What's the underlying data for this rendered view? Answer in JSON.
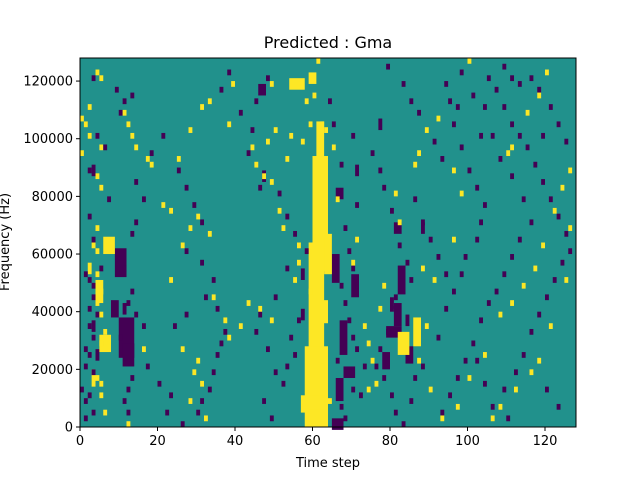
{
  "chart_data": {
    "type": "heatmap",
    "title": "Predicted : Gma",
    "xlabel": "Time step",
    "ylabel": "Frequency (Hz)",
    "xlim": [
      0,
      128
    ],
    "ylim": [
      0,
      128000
    ],
    "cell_height_hz": 2000,
    "xticks": [
      0,
      20,
      40,
      60,
      80,
      100,
      120
    ],
    "yticks": [
      0,
      20000,
      40000,
      60000,
      80000,
      100000,
      120000
    ],
    "grid": false,
    "colors": {
      "background_value": "#21918c",
      "high_value": "#fde725",
      "low_value": "#440154"
    },
    "high_cells": [
      [
        4,
        123000
      ],
      [
        2,
        111000
      ],
      [
        0,
        107000
      ],
      [
        1,
        105000
      ],
      [
        2,
        101000
      ],
      [
        0,
        95000
      ],
      [
        4,
        87000
      ],
      [
        5,
        83000
      ],
      [
        4,
        69000
      ],
      [
        3,
        63000
      ],
      [
        4,
        61000
      ],
      [
        4,
        53000
      ],
      [
        5,
        47000
      ],
      [
        4,
        43000
      ],
      [
        5,
        39000
      ],
      [
        6,
        33000
      ],
      [
        5,
        29000
      ],
      [
        4,
        17000
      ],
      [
        5,
        11000
      ],
      [
        6,
        5000
      ],
      [
        5,
        15000
      ],
      [
        5,
        121000
      ],
      [
        11,
        109000
      ],
      [
        12,
        105000
      ],
      [
        13,
        101000
      ],
      [
        17,
        93000
      ],
      [
        14,
        97000
      ],
      [
        18,
        91000
      ],
      [
        23,
        51000
      ],
      [
        26,
        63000
      ],
      [
        23,
        75000
      ],
      [
        21,
        77000
      ],
      [
        30,
        73000
      ],
      [
        33,
        67000
      ],
      [
        28,
        69000
      ],
      [
        26,
        27000
      ],
      [
        30,
        23000
      ],
      [
        29,
        19000
      ],
      [
        31,
        15000
      ],
      [
        28,
        9000
      ],
      [
        32,
        3000
      ],
      [
        34,
        45000
      ],
      [
        37,
        37000
      ],
      [
        38,
        31000
      ],
      [
        41,
        35000
      ],
      [
        46,
        41000
      ],
      [
        49,
        37000
      ],
      [
        43,
        43000
      ],
      [
        45,
        91000
      ],
      [
        47,
        87000
      ],
      [
        49,
        85000
      ],
      [
        51,
        75000
      ],
      [
        56,
        63000
      ],
      [
        56,
        57000
      ],
      [
        55,
        51000
      ],
      [
        59,
        47000
      ],
      [
        62,
        21000
      ],
      [
        63,
        17000
      ],
      [
        64,
        9000
      ],
      [
        16,
        27000
      ],
      [
        12,
        1000
      ],
      [
        25,
        93000
      ],
      [
        28,
        103000
      ],
      [
        31,
        111000
      ],
      [
        33,
        113000
      ],
      [
        38,
        105000
      ],
      [
        39,
        119000
      ],
      [
        49,
        119000
      ],
      [
        50,
        103000
      ],
      [
        48,
        99000
      ],
      [
        53,
        93000
      ],
      [
        57,
        99000
      ],
      [
        59,
        105000
      ],
      [
        60,
        115000
      ],
      [
        61,
        127000
      ],
      [
        62,
        105000
      ],
      [
        63,
        103000
      ],
      [
        65,
        97000
      ],
      [
        62,
        87000
      ],
      [
        66,
        79000
      ],
      [
        70,
        57000
      ],
      [
        73,
        35000
      ],
      [
        74,
        29000
      ],
      [
        75,
        23000
      ],
      [
        76,
        15000
      ],
      [
        74,
        13000
      ],
      [
        77,
        41000
      ],
      [
        78,
        49000
      ],
      [
        81,
        81000
      ],
      [
        86,
        91000
      ],
      [
        87,
        95000
      ],
      [
        89,
        103000
      ],
      [
        92,
        107000
      ],
      [
        96,
        89000
      ],
      [
        98,
        81000
      ],
      [
        96,
        65000
      ],
      [
        91,
        51000
      ],
      [
        89,
        35000
      ],
      [
        87,
        23000
      ],
      [
        90,
        13000
      ],
      [
        93,
        3000
      ],
      [
        97,
        7000
      ],
      [
        100,
        17000
      ],
      [
        104,
        25000
      ],
      [
        108,
        39000
      ],
      [
        111,
        43000
      ],
      [
        114,
        49000
      ],
      [
        117,
        55000
      ],
      [
        119,
        63000
      ],
      [
        122,
        75000
      ],
      [
        124,
        83000
      ],
      [
        126,
        89000
      ],
      [
        126,
        69000
      ],
      [
        125,
        51000
      ],
      [
        121,
        35000
      ],
      [
        118,
        23000
      ],
      [
        116,
        19000
      ],
      [
        112,
        13000
      ],
      [
        108,
        7000
      ],
      [
        106,
        3000
      ],
      [
        110,
        95000
      ],
      [
        111,
        97000
      ],
      [
        115,
        109000
      ],
      [
        118,
        115000
      ],
      [
        120,
        123000
      ],
      [
        100,
        127000
      ],
      [
        44,
        97000
      ],
      [
        52,
        69000
      ],
      [
        58,
        113000
      ],
      [
        54,
        101000
      ],
      [
        71,
        65000
      ],
      [
        82,
        71000
      ],
      [
        88,
        55000
      ]
    ],
    "high_blocks": [
      [
        59,
        121000,
        2,
        4000
      ],
      [
        61,
        86000,
        2,
        40000
      ],
      [
        60,
        74000,
        4,
        40000
      ],
      [
        59,
        42000,
        4,
        44000
      ],
      [
        58,
        14000,
        6,
        28000
      ],
      [
        57,
        8000,
        6,
        6000
      ],
      [
        59,
        4000,
        5,
        4000
      ],
      [
        62,
        40000,
        2,
        8000
      ],
      [
        63,
        60000,
        2,
        14000
      ],
      [
        54,
        119000,
        4,
        4000
      ],
      [
        2,
        55000,
        1,
        4000
      ],
      [
        4,
        47000,
        2,
        8000
      ],
      [
        5,
        29000,
        3,
        6000
      ],
      [
        3,
        17000,
        1,
        6000
      ],
      [
        5,
        97000,
        1,
        2000
      ],
      [
        6,
        63000,
        3,
        6000
      ],
      [
        82,
        29000,
        3,
        8000
      ],
      [
        86,
        33000,
        2,
        10000
      ]
    ],
    "low_cells": [
      [
        3,
        121000
      ],
      [
        9,
        117000
      ],
      [
        13,
        115000
      ],
      [
        11,
        113000
      ],
      [
        10,
        109000
      ],
      [
        4,
        101000
      ],
      [
        6,
        97000
      ],
      [
        2,
        89000
      ],
      [
        7,
        79000
      ],
      [
        2,
        73000
      ],
      [
        3,
        65000
      ],
      [
        5,
        55000
      ],
      [
        1,
        53000
      ],
      [
        2,
        51000
      ],
      [
        3,
        49000
      ],
      [
        3,
        45000
      ],
      [
        2,
        41000
      ],
      [
        4,
        39000
      ],
      [
        2,
        35000
      ],
      [
        3,
        31000
      ],
      [
        1,
        27000
      ],
      [
        2,
        25000
      ],
      [
        1,
        21000
      ],
      [
        3,
        19000
      ],
      [
        0,
        13000
      ],
      [
        2,
        11000
      ],
      [
        1,
        9000
      ],
      [
        3,
        5000
      ],
      [
        1,
        3000
      ],
      [
        12,
        43000
      ],
      [
        13,
        47000
      ],
      [
        14,
        39000
      ],
      [
        11,
        55000
      ],
      [
        13,
        67000
      ],
      [
        14,
        71000
      ],
      [
        16,
        79000
      ],
      [
        14,
        85000
      ],
      [
        18,
        95000
      ],
      [
        21,
        101000
      ],
      [
        25,
        89000
      ],
      [
        27,
        83000
      ],
      [
        29,
        77000
      ],
      [
        31,
        71000
      ],
      [
        27,
        61000
      ],
      [
        31,
        57000
      ],
      [
        34,
        51000
      ],
      [
        32,
        45000
      ],
      [
        35,
        41000
      ],
      [
        37,
        33000
      ],
      [
        36,
        29000
      ],
      [
        35,
        25000
      ],
      [
        34,
        19000
      ],
      [
        33,
        13000
      ],
      [
        31,
        9000
      ],
      [
        30,
        5000
      ],
      [
        13,
        17000
      ],
      [
        12,
        13000
      ],
      [
        11,
        9000
      ],
      [
        12,
        5000
      ],
      [
        10,
        31000
      ],
      [
        24,
        35000
      ],
      [
        27,
        39000
      ],
      [
        16,
        35000
      ],
      [
        17,
        21000
      ],
      [
        20,
        15000
      ],
      [
        23,
        11000
      ],
      [
        22,
        5000
      ],
      [
        26,
        1000
      ],
      [
        38,
        123000
      ],
      [
        36,
        117000
      ],
      [
        41,
        109000
      ],
      [
        45,
        113000
      ],
      [
        48,
        121000
      ],
      [
        44,
        103000
      ],
      [
        43,
        95000
      ],
      [
        46,
        83000
      ],
      [
        51,
        81000
      ],
      [
        53,
        73000
      ],
      [
        55,
        67000
      ],
      [
        58,
        61000
      ],
      [
        53,
        55000
      ],
      [
        50,
        45000
      ],
      [
        46,
        39000
      ],
      [
        45,
        33000
      ],
      [
        48,
        27000
      ],
      [
        50,
        19000
      ],
      [
        52,
        15000
      ],
      [
        47,
        9000
      ],
      [
        49,
        3000
      ],
      [
        56,
        37000
      ],
      [
        54,
        31000
      ],
      [
        55,
        25000
      ],
      [
        53,
        21000
      ],
      [
        64,
        113000
      ],
      [
        65,
        105000
      ],
      [
        67,
        91000
      ],
      [
        70,
        101000
      ],
      [
        71,
        77000
      ],
      [
        68,
        69000
      ],
      [
        69,
        61000
      ],
      [
        70,
        55000
      ],
      [
        71,
        49000
      ],
      [
        68,
        43000
      ],
      [
        69,
        37000
      ],
      [
        70,
        31000
      ],
      [
        71,
        27000
      ],
      [
        73,
        21000
      ],
      [
        70,
        13000
      ],
      [
        67,
        7000
      ],
      [
        68,
        3000
      ],
      [
        66,
        23000
      ],
      [
        67,
        49000
      ],
      [
        72,
        11000
      ],
      [
        75,
        95000
      ],
      [
        77,
        89000
      ],
      [
        78,
        83000
      ],
      [
        80,
        75000
      ],
      [
        82,
        63000
      ],
      [
        84,
        57000
      ],
      [
        85,
        51000
      ],
      [
        81,
        45000
      ],
      [
        80,
        41000
      ],
      [
        79,
        33000
      ],
      [
        77,
        27000
      ],
      [
        76,
        21000
      ],
      [
        78,
        17000
      ],
      [
        80,
        11000
      ],
      [
        81,
        5000
      ],
      [
        83,
        1000
      ],
      [
        88,
        21000
      ],
      [
        86,
        17000
      ],
      [
        85,
        9000
      ],
      [
        92,
        31000
      ],
      [
        94,
        41000
      ],
      [
        96,
        47000
      ],
      [
        98,
        53000
      ],
      [
        99,
        59000
      ],
      [
        102,
        65000
      ],
      [
        103,
        71000
      ],
      [
        104,
        77000
      ],
      [
        102,
        83000
      ],
      [
        100,
        89000
      ],
      [
        98,
        97000
      ],
      [
        96,
        105000
      ],
      [
        95,
        113000
      ],
      [
        94,
        119000
      ],
      [
        98,
        123000
      ],
      [
        101,
        115000
      ],
      [
        104,
        111000
      ],
      [
        106,
        101000
      ],
      [
        108,
        93000
      ],
      [
        111,
        87000
      ],
      [
        114,
        79000
      ],
      [
        116,
        71000
      ],
      [
        113,
        65000
      ],
      [
        111,
        59000
      ],
      [
        109,
        53000
      ],
      [
        107,
        47000
      ],
      [
        105,
        43000
      ],
      [
        103,
        37000
      ],
      [
        101,
        29000
      ],
      [
        99,
        23000
      ],
      [
        97,
        17000
      ],
      [
        95,
        11000
      ],
      [
        93,
        5000
      ],
      [
        106,
        7000
      ],
      [
        109,
        13000
      ],
      [
        112,
        19000
      ],
      [
        114,
        25000
      ],
      [
        116,
        33000
      ],
      [
        118,
        39000
      ],
      [
        120,
        45000
      ],
      [
        122,
        51000
      ],
      [
        124,
        57000
      ],
      [
        126,
        61000
      ],
      [
        125,
        67000
      ],
      [
        123,
        73000
      ],
      [
        121,
        79000
      ],
      [
        119,
        85000
      ],
      [
        117,
        91000
      ],
      [
        115,
        97000
      ],
      [
        113,
        101000
      ],
      [
        111,
        105000
      ],
      [
        109,
        111000
      ],
      [
        107,
        117000
      ],
      [
        105,
        121000
      ],
      [
        109,
        125000
      ],
      [
        111,
        121000
      ],
      [
        113,
        119000
      ],
      [
        116,
        121000
      ],
      [
        118,
        117000
      ],
      [
        121,
        111000
      ],
      [
        123,
        105000
      ],
      [
        125,
        99000
      ],
      [
        119,
        101000
      ],
      [
        86,
        79000
      ],
      [
        88,
        71000
      ],
      [
        90,
        65000
      ],
      [
        92,
        59000
      ],
      [
        94,
        53000
      ],
      [
        102,
        23000
      ],
      [
        104,
        15000
      ],
      [
        110,
        3000
      ],
      [
        123,
        7000
      ],
      [
        120,
        13000
      ],
      [
        79,
        125000
      ],
      [
        83,
        119000
      ],
      [
        85,
        113000
      ],
      [
        87,
        109000
      ],
      [
        91,
        99000
      ],
      [
        93,
        93000
      ],
      [
        97,
        111000
      ],
      [
        103,
        101000
      ]
    ],
    "low_blocks": [
      [
        9,
        57000,
        3,
        10000
      ],
      [
        10,
        31000,
        4,
        14000
      ],
      [
        11,
        25000,
        3,
        8000
      ],
      [
        8,
        41000,
        2,
        6000
      ],
      [
        57,
        39000,
        1,
        4000
      ],
      [
        57,
        53000,
        1,
        4000
      ],
      [
        65,
        55000,
        2,
        10000
      ],
      [
        67,
        31000,
        2,
        12000
      ],
      [
        66,
        13000,
        2,
        8000
      ],
      [
        65,
        1000,
        3,
        4000
      ],
      [
        66,
        81000,
        2,
        4000
      ],
      [
        68,
        19000,
        3,
        4000
      ],
      [
        70,
        49000,
        2,
        8000
      ],
      [
        81,
        69000,
        2,
        4000
      ],
      [
        82,
        51000,
        2,
        10000
      ],
      [
        81,
        39000,
        2,
        8000
      ],
      [
        79,
        33000,
        4,
        4000
      ],
      [
        78,
        23000,
        2,
        6000
      ],
      [
        80,
        43000,
        1,
        4000
      ],
      [
        84,
        37000,
        1,
        4000
      ],
      [
        84,
        25000,
        2,
        6000
      ],
      [
        88,
        69000,
        1,
        4000
      ],
      [
        46,
        117000,
        2,
        4000
      ],
      [
        47,
        87000,
        1,
        4000
      ],
      [
        3,
        89000,
        1,
        4000
      ],
      [
        4,
        25000,
        1,
        4000
      ],
      [
        3,
        35000,
        1,
        4000
      ],
      [
        11,
        41000,
        1,
        4000
      ],
      [
        71,
        89000,
        1,
        4000
      ],
      [
        77,
        105000,
        1,
        4000
      ]
    ]
  }
}
